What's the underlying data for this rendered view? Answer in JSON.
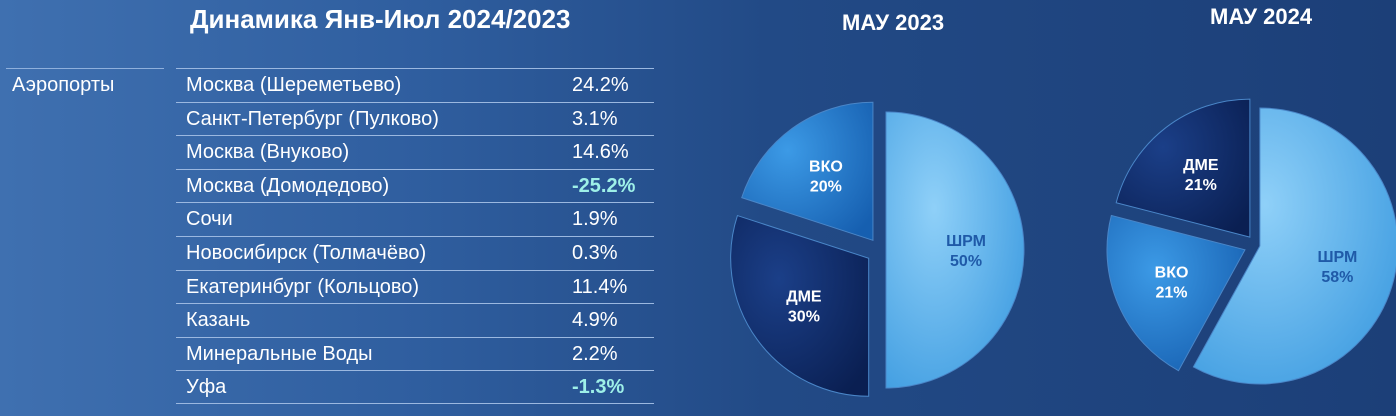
{
  "title": "Динамика Янв-Июл 2024/2023",
  "table": {
    "label": "Аэропорты",
    "rows": [
      {
        "name": "Москва (Шереметьево)",
        "value": "24.2%",
        "negative": false
      },
      {
        "name": "Санкт-Петербург (Пулково)",
        "value": "3.1%",
        "negative": false
      },
      {
        "name": "Москва (Внуково)",
        "value": "14.6%",
        "negative": false
      },
      {
        "name": "Москва (Домодедово)",
        "value": "-25.2%",
        "negative": true
      },
      {
        "name": "Сочи",
        "value": "1.9%",
        "negative": false
      },
      {
        "name": "Новосибирск  (Толмачёво)",
        "value": "0.3%",
        "negative": false
      },
      {
        "name": "Екатеринбург (Кольцово)",
        "value": "11.4%",
        "negative": false
      },
      {
        "name": "Казань",
        "value": "4.9%",
        "negative": false
      },
      {
        "name": "Минеральные Воды",
        "value": "2.2%",
        "negative": false
      },
      {
        "name": "Уфа",
        "value": "-1.3%",
        "negative": true
      }
    ]
  },
  "chart_data": [
    {
      "type": "pie",
      "title": "МАУ 2023",
      "slices": [
        {
          "label": "ШРМ",
          "value": 50,
          "text": "50%",
          "color": "#5ab2ec"
        },
        {
          "label": "ДМЕ",
          "value": 30,
          "text": "30%",
          "color": "#0e2a66"
        },
        {
          "label": "ВКО",
          "value": 20,
          "text": "20%",
          "color": "#1e7bd0"
        }
      ]
    },
    {
      "type": "pie",
      "title": "МАУ 2024",
      "slices": [
        {
          "label": "ШРМ",
          "value": 58,
          "text": "58%",
          "color": "#5ab2ec"
        },
        {
          "label": "ВКО",
          "value": 21,
          "text": "21%",
          "color": "#1e7bd0"
        },
        {
          "label": "ДМЕ",
          "value": 21,
          "text": "21%",
          "color": "#0e2a66"
        }
      ]
    }
  ]
}
